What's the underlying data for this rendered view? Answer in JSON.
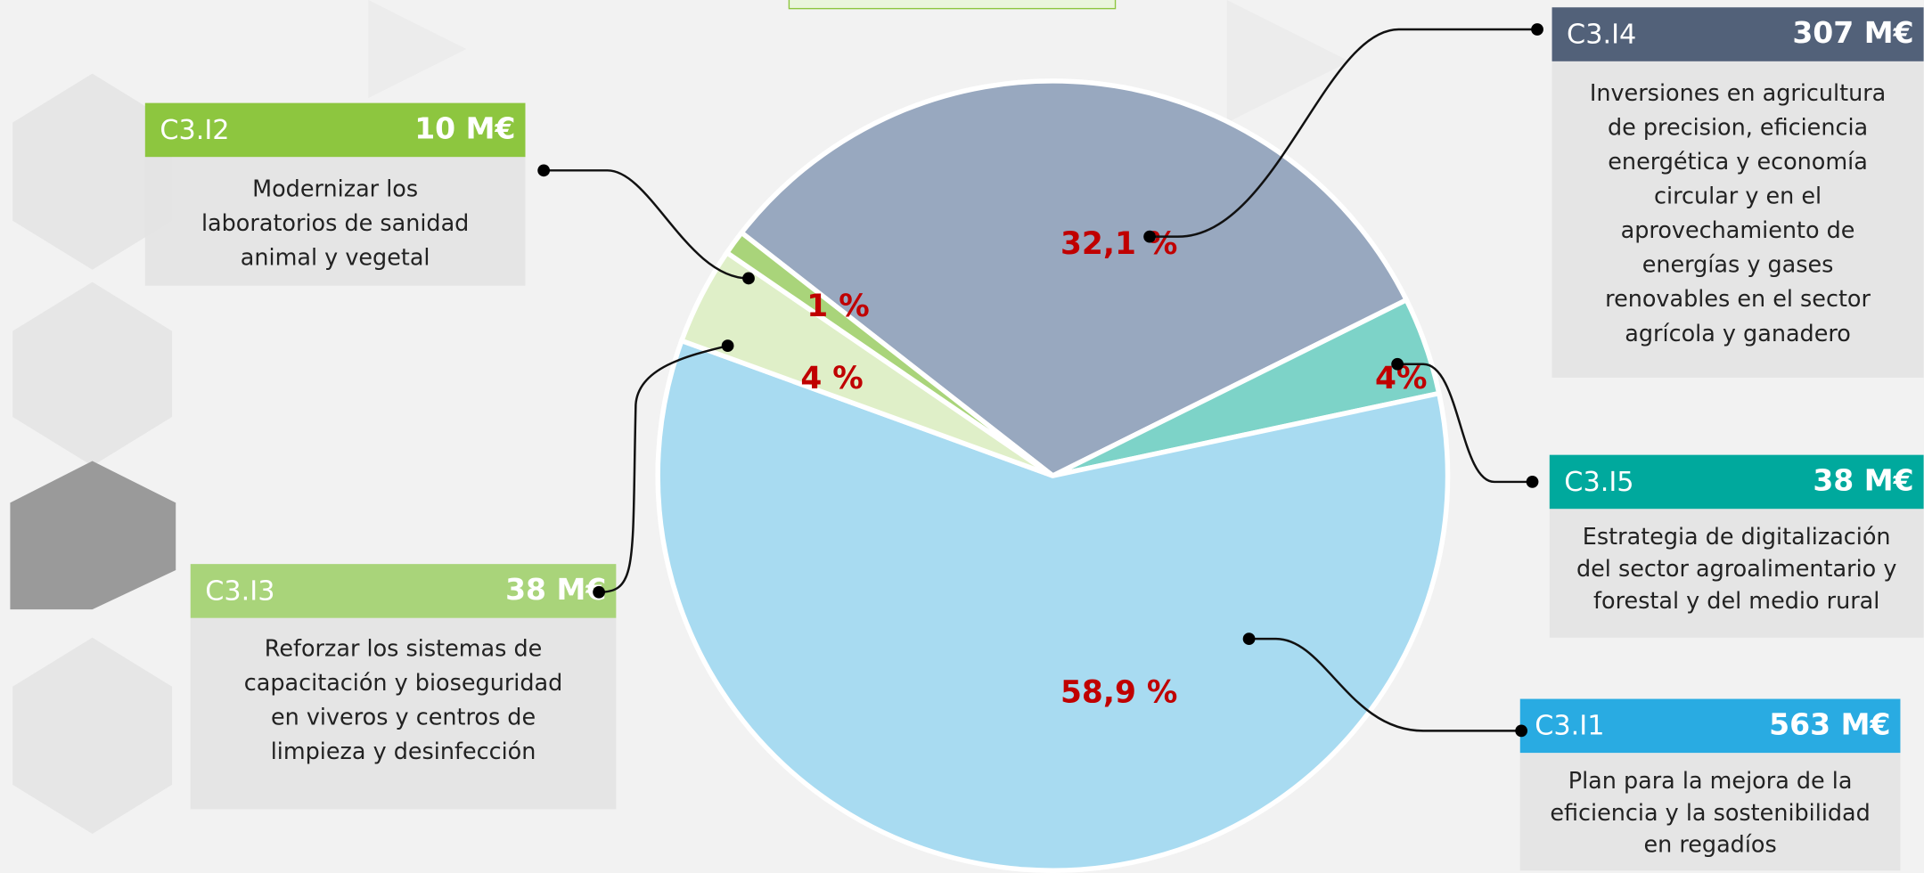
{
  "chart_data": {
    "type": "pie",
    "values": [
      32.1,
      4,
      58.9,
      4,
      1
    ],
    "value_labels": [
      "32,1 %",
      "4%",
      "58,9 %",
      "4 %",
      "1 %"
    ],
    "colors": [
      "#98a8bf",
      "#7dd3c8",
      "#a8dbf1",
      "#dfefc8",
      "#a9d47a"
    ]
  },
  "boxes": [
    {
      "code": "C3.I4",
      "amount": "307 M€",
      "description": [
        "Inversiones en agricultura",
        "de precision, eficiencia",
        "energética y economía",
        "circular y en el",
        "aprovechamiento de",
        "energías y gases",
        "renovables en el sector",
        "agrícola y ganadero"
      ]
    },
    {
      "code": "C3.I5",
      "amount": "38 M€",
      "description": [
        "Estrategia de digitalización",
        "del sector agroalimentario y",
        "forestal y del medio rural"
      ]
    },
    {
      "code": "C3.I1",
      "amount": "563 M€",
      "description": [
        "Plan para la mejora de la",
        "eficiencia y la sostenibilidad",
        "en regadíos"
      ]
    },
    {
      "code": "C3.I3",
      "amount": "38 M€",
      "description": [
        "Reforzar los sistemas de",
        "capacitación y bioseguridad",
        "en viveros y centros de",
        "limpieza y desinfección"
      ]
    },
    {
      "code": "C3.I2",
      "amount": "10 M€",
      "description": [
        "Modernizar los",
        "laboratorios de sanidad",
        "animal y vegetal"
      ]
    }
  ]
}
